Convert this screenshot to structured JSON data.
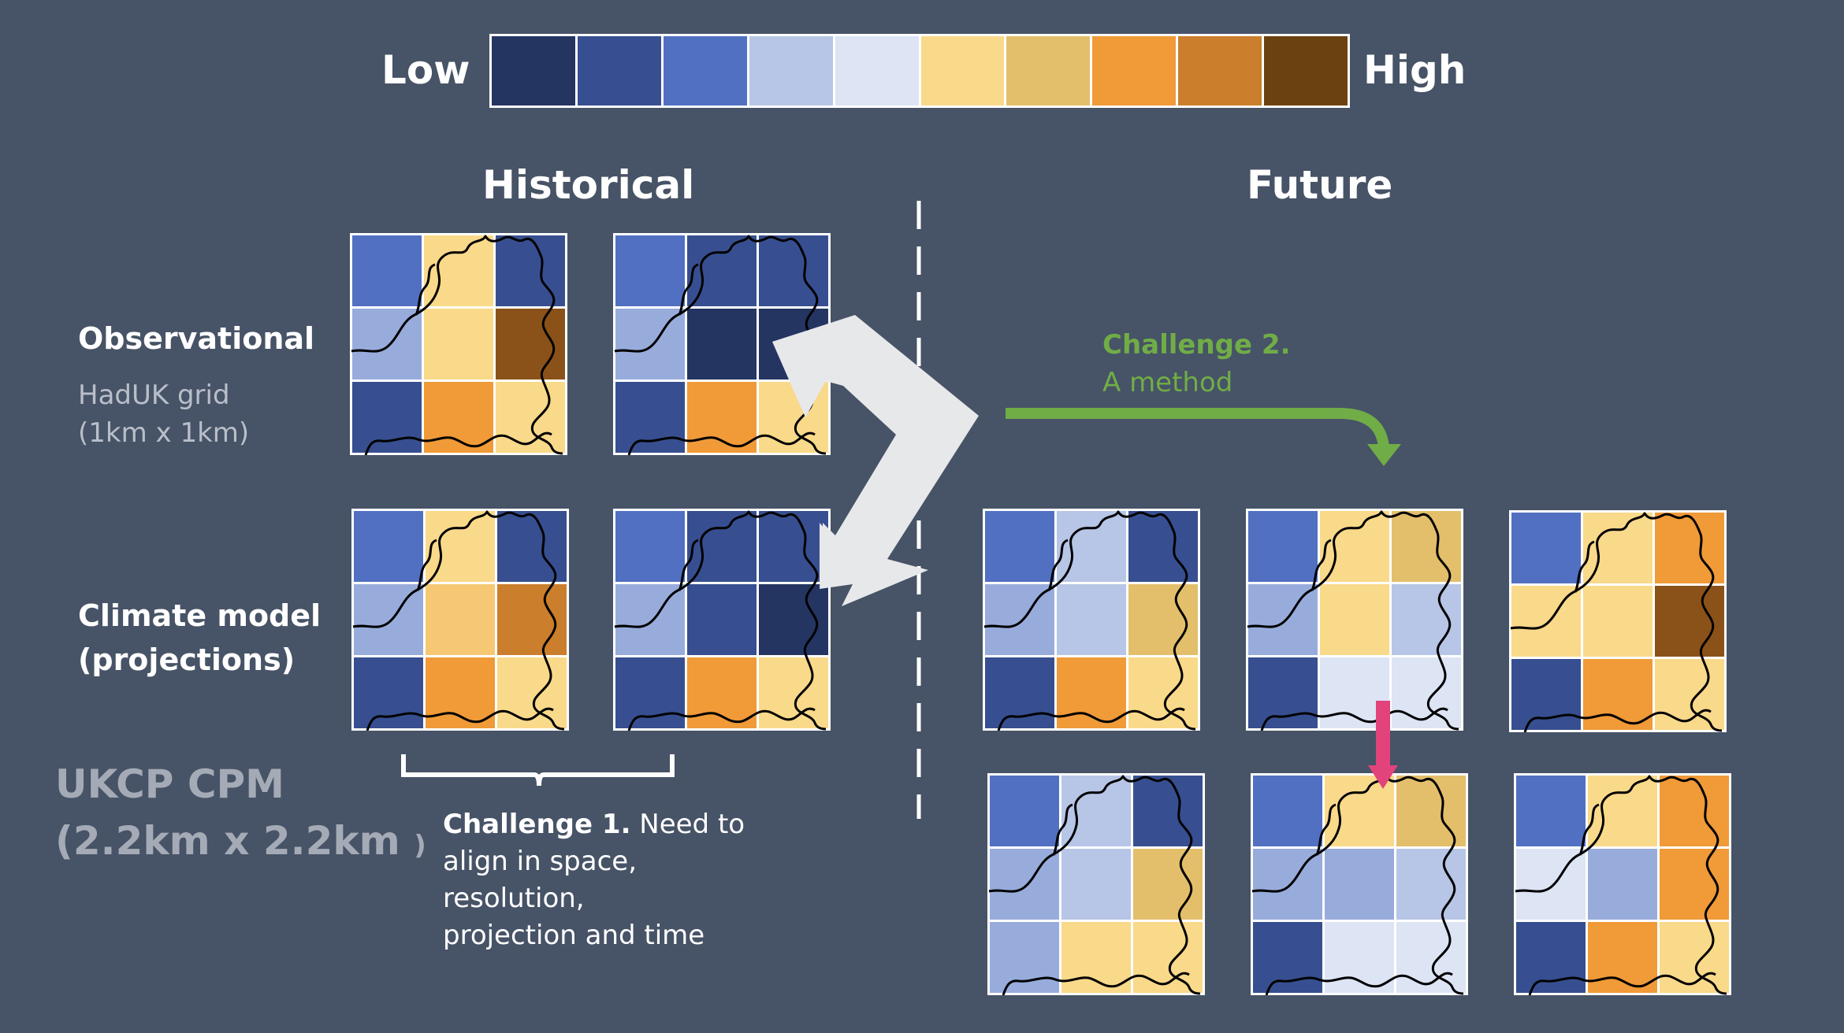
{
  "colors": {
    "background": "#475366",
    "scale": [
      "#243562",
      "#374f90",
      "#5170c2",
      "#b7c5e6",
      "#dde4f4",
      "#f9d98a",
      "#e3bf6c",
      "#f09a38",
      "#cb7e2c",
      "#6c4112"
    ],
    "challenge2": "#70ad47",
    "arrow": "#e7e8ea",
    "pink": "#e1437a"
  },
  "scale": {
    "low_label": "Low",
    "high_label": "High"
  },
  "headings": {
    "historical": "Historical",
    "future": "Future"
  },
  "rows": {
    "observational": {
      "label": "Observational",
      "sub1": "HadUK grid",
      "sub2": "(1km x 1km)"
    },
    "climate": {
      "label1": "Climate model",
      "label2": "(projections)"
    }
  },
  "ukcp": {
    "line1": "UKCP CPM",
    "line2": "(2.2km x 2.2km",
    "line2_close": ")"
  },
  "challenge1": {
    "title": "Challenge 1.",
    "text1": " Need to",
    "text2": "align in space,",
    "text3": "resolution,",
    "text4": "projection and time"
  },
  "challenge2": {
    "title": "Challenge 2.",
    "text": "A method"
  },
  "tiles": [
    {
      "id": "obs-hist-1",
      "cells": [
        "#5170c2",
        "#f9d98a",
        "#374f90",
        "#98acdc",
        "#f9d98a",
        "#8a5218",
        "#374f90",
        "#f09a38",
        "#f9d98a"
      ]
    },
    {
      "id": "obs-hist-2",
      "cells": [
        "#5170c2",
        "#374f90",
        "#374f90",
        "#98acdc",
        "#243562",
        "#243562",
        "#374f90",
        "#f09a38",
        "#f9d98a"
      ]
    },
    {
      "id": "cm-hist-1",
      "cells": [
        "#5170c2",
        "#f9d98a",
        "#374f90",
        "#98acdc",
        "#f6c873",
        "#cb7e2c",
        "#374f90",
        "#f09a38",
        "#f9d98a"
      ]
    },
    {
      "id": "cm-hist-2",
      "cells": [
        "#5170c2",
        "#374f90",
        "#374f90",
        "#98acdc",
        "#374f90",
        "#243562",
        "#374f90",
        "#f09a38",
        "#f9d98a"
      ]
    },
    {
      "id": "cm-fut-1",
      "cells": [
        "#5170c2",
        "#b7c5e6",
        "#374f90",
        "#98acdc",
        "#b7c5e6",
        "#e3bf6c",
        "#374f90",
        "#f09a38",
        "#f9d98a"
      ]
    },
    {
      "id": "cm-fut-2",
      "cells": [
        "#5170c2",
        "#f9d98a",
        "#e3bf6c",
        "#98acdc",
        "#f9d98a",
        "#b7c5e6",
        "#374f90",
        "#dde4f4",
        "#dde4f4"
      ]
    },
    {
      "id": "cm-fut-3",
      "cells": [
        "#5170c2",
        "#f9d98a",
        "#f09a38",
        "#f9d98a",
        "#f9d98a",
        "#8a5218",
        "#374f90",
        "#f09a38",
        "#f9d98a"
      ]
    },
    {
      "id": "ds-fut-1",
      "cells": [
        "#5170c2",
        "#b7c5e6",
        "#374f90",
        "#98acdc",
        "#b7c5e6",
        "#e3bf6c",
        "#98acdc",
        "#f9d98a",
        "#f9d98a"
      ]
    },
    {
      "id": "ds-fut-2",
      "cells": [
        "#5170c2",
        "#f9d98a",
        "#e3bf6c",
        "#98acdc",
        "#98acdc",
        "#b7c5e6",
        "#374f90",
        "#dde4f4",
        "#dde4f4"
      ]
    },
    {
      "id": "ds-fut-3",
      "cells": [
        "#5170c2",
        "#f9d98a",
        "#f09a38",
        "#dde4f4",
        "#98acdc",
        "#f09a38",
        "#374f90",
        "#f09a38",
        "#f9d98a"
      ]
    }
  ]
}
